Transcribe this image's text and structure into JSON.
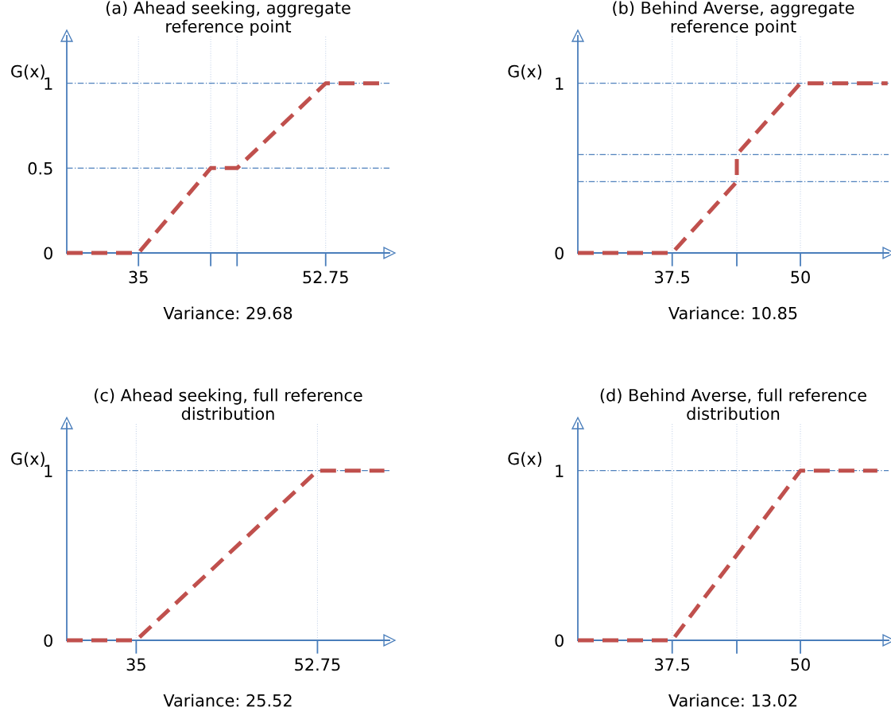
{
  "chart_data": [
    {
      "type": "line",
      "title": "(a) Ahead seeking, aggregate\nreference point",
      "xlabel": "Variance: 29.68",
      "ylabel": "G(x)",
      "series": [
        {
          "color": "#c0504d",
          "x": [
            28.2,
            35,
            41.85,
            44.35,
            52.75,
            57.9
          ],
          "values": [
            0,
            0,
            0.5,
            0.5,
            1,
            1
          ]
        }
      ],
      "xlim": [
        28.2,
        58.8
      ],
      "ylim": [
        0,
        1.28
      ],
      "xticks": [
        35,
        {
          "value": 41.85,
          "label": null
        },
        {
          "value": 44.35,
          "label": null
        },
        52.75
      ],
      "yticks": [
        0,
        0.5,
        1
      ],
      "ref_lines": [
        {
          "axis": "y",
          "value": 0.5,
          "color": "#4f81bd"
        },
        {
          "axis": "y",
          "value": 1,
          "color": "#4f81bd"
        }
      ],
      "grid": "x",
      "line_style": "dashed"
    },
    {
      "type": "line",
      "title": "(b) Behind Averse, aggregate\nreference point",
      "xlabel": "Variance: 10.85",
      "ylabel": "G(x)",
      "series": [
        {
          "color": "#c0504d",
          "x": [
            28.3,
            37.5,
            43.8,
            43.8,
            50,
            58.5
          ],
          "values": [
            0,
            0,
            0.42,
            0.58,
            1,
            1
          ]
        }
      ],
      "xlim": [
        28.3,
        58.6
      ],
      "ylim": [
        0,
        1.28
      ],
      "xticks": [
        37.5,
        {
          "value": 43.8,
          "label": null
        },
        50
      ],
      "yticks": [
        0,
        1
      ],
      "ref_lines": [
        {
          "axis": "y",
          "value": 0.42,
          "color": "#4f81bd"
        },
        {
          "axis": "y",
          "value": 0.58,
          "color": "#4f81bd"
        },
        {
          "axis": "y",
          "value": 1,
          "color": "#4f81bd"
        }
      ],
      "grid": "x",
      "line_style": "dashed"
    },
    {
      "type": "line",
      "title": "(c) Ahead seeking, full reference\ndistribution",
      "xlabel": "Variance: 25.52",
      "ylabel": "G(x)",
      "series": [
        {
          "color": "#c0504d",
          "x": [
            28.2,
            35,
            52.75,
            59.3
          ],
          "values": [
            0,
            0,
            1,
            1
          ]
        }
      ],
      "xlim": [
        28.2,
        59.8
      ],
      "ylim": [
        0,
        1.28
      ],
      "xticks": [
        35,
        52.75
      ],
      "yticks": [
        0,
        1
      ],
      "ref_lines": [
        {
          "axis": "y",
          "value": 1,
          "color": "#4f81bd"
        }
      ],
      "grid": "x",
      "line_style": "dashed"
    },
    {
      "type": "line",
      "title": "(d) Behind Averse, full reference\ndistribution",
      "xlabel": "Variance: 13.02",
      "ylabel": "G(x)",
      "series": [
        {
          "color": "#c0504d",
          "x": [
            28.3,
            37.5,
            50,
            57.5
          ],
          "values": [
            0,
            0,
            1,
            1
          ]
        }
      ],
      "xlim": [
        28.3,
        58.6
      ],
      "ylim": [
        0,
        1.28
      ],
      "xticks": [
        37.5,
        {
          "value": 43.8,
          "label": null
        },
        50
      ],
      "yticks": [
        0,
        1
      ],
      "ref_lines": [
        {
          "axis": "y",
          "value": 1,
          "color": "#4f81bd"
        }
      ],
      "grid": "x",
      "line_style": "dashed"
    }
  ]
}
